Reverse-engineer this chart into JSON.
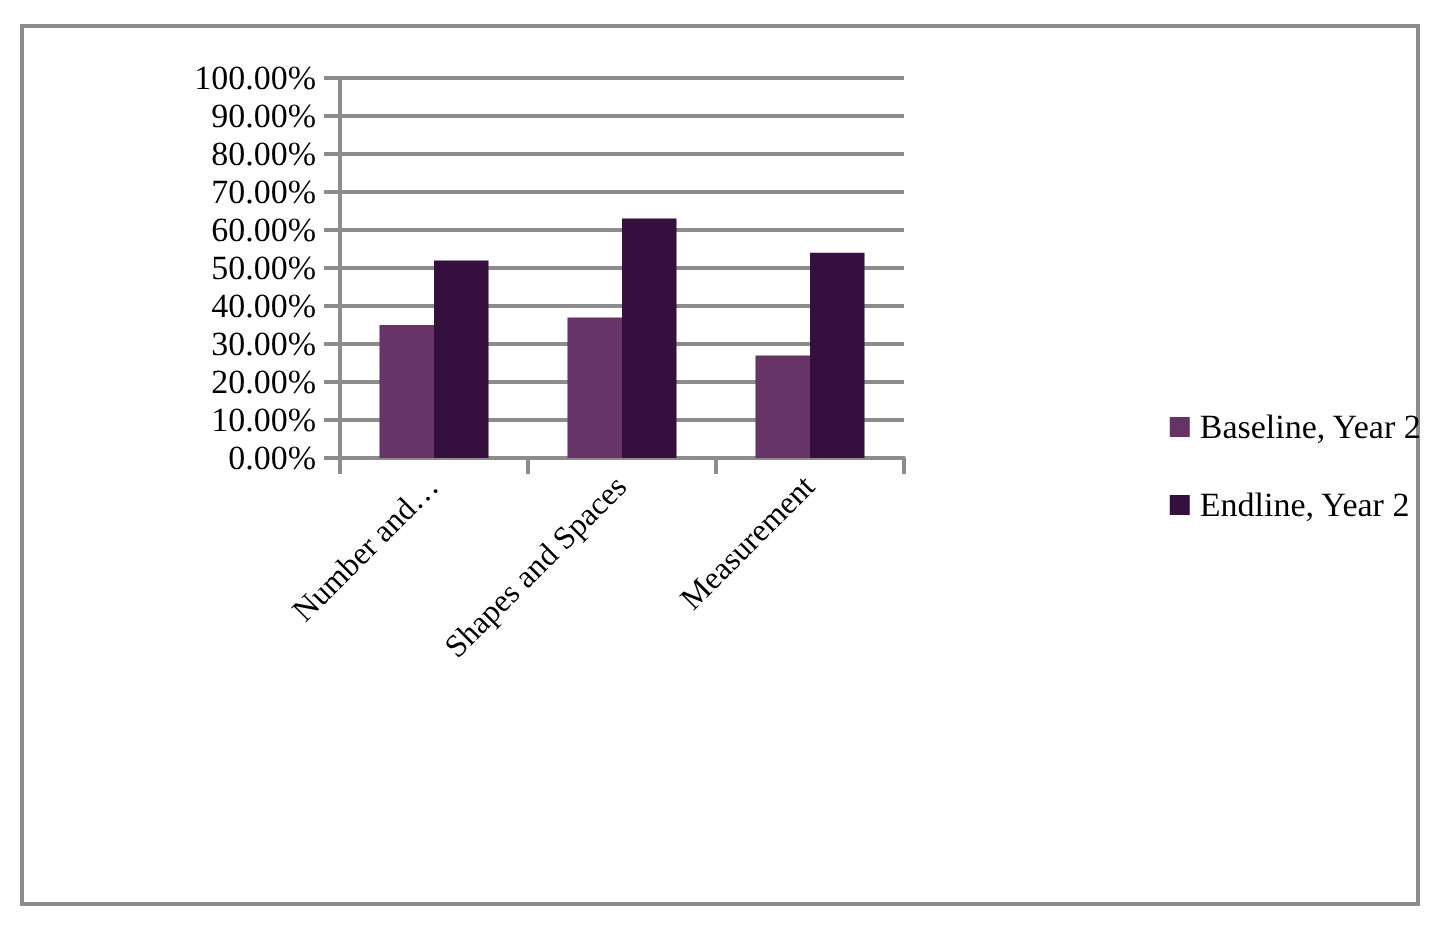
{
  "chart_data": {
    "type": "bar",
    "categories": [
      "Number and…",
      "Shapes and Spaces",
      "Measurement"
    ],
    "series": [
      {
        "name": "Baseline, Year 2",
        "color": "#663366",
        "values": [
          35,
          37,
          27
        ]
      },
      {
        "name": "Endline, Year 2",
        "color": "#35103f",
        "values": [
          52,
          63,
          54
        ]
      }
    ],
    "ylim": [
      0,
      100
    ],
    "yticks": [
      {
        "value": 0,
        "label": "0.00%"
      },
      {
        "value": 10,
        "label": "10.00%"
      },
      {
        "value": 20,
        "label": "20.00%"
      },
      {
        "value": 30,
        "label": "30.00%"
      },
      {
        "value": 40,
        "label": "40.00%"
      },
      {
        "value": 50,
        "label": "50.00%"
      },
      {
        "value": 60,
        "label": "60.00%"
      },
      {
        "value": 70,
        "label": "70.00%"
      },
      {
        "value": 80,
        "label": "80.00%"
      },
      {
        "value": 90,
        "label": "90.00%"
      },
      {
        "value": 100,
        "label": "100.00%"
      }
    ],
    "grid": true,
    "legend": "right"
  }
}
